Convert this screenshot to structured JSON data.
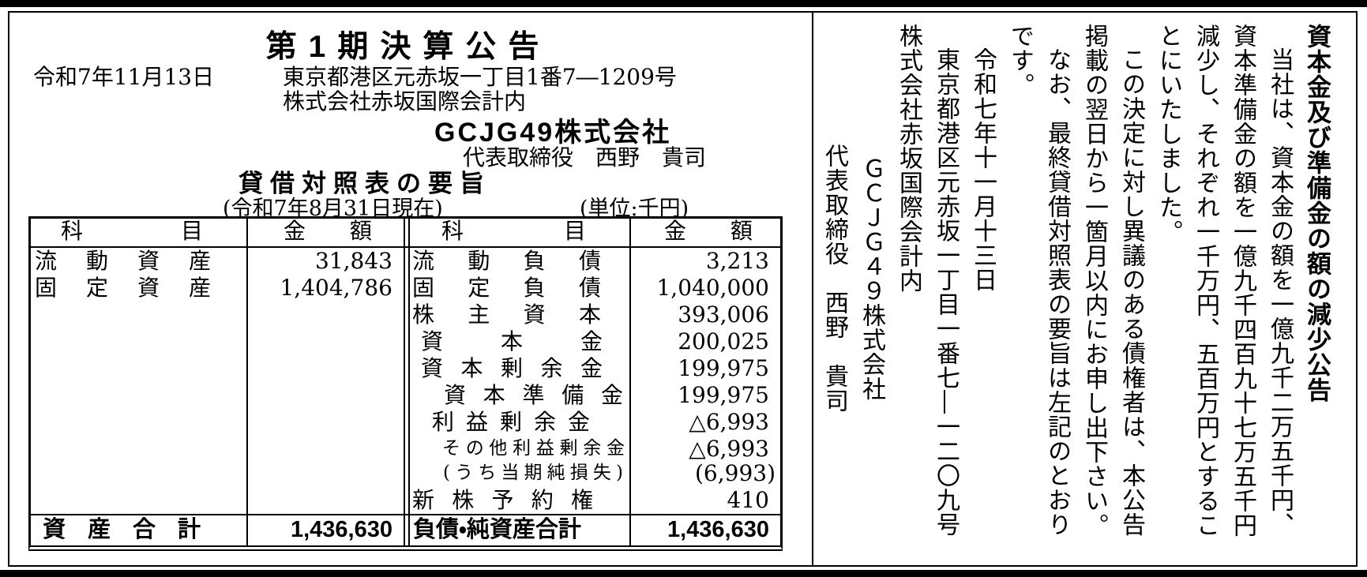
{
  "left": {
    "title": "第1期決算公告",
    "date": "令和7年11月13日",
    "address1": "東京都港区元赤坂一丁目1番7―1209号",
    "address2": "株式会社赤坂国際会計内",
    "company": "GCJG49株式会社",
    "representative": "代表取締役　西野　貴司",
    "bs_title": "貸借対照表の要旨",
    "bs_asof": "(令和7年8月31日現在)",
    "bs_unit": "(単位:千円)",
    "table": {
      "col_headers": [
        "科目",
        "金額",
        "科目",
        "金額"
      ],
      "assets": [
        {
          "label": "流動資産",
          "value": "31,843"
        },
        {
          "label": "固定資産",
          "value": "1,404,786"
        }
      ],
      "liabilities": [
        {
          "label": "流動負債",
          "value": "3,213"
        },
        {
          "label": "固定負債",
          "value": "1,040,000"
        },
        {
          "label": "株主資本",
          "value": "393,006"
        },
        {
          "label": "資本金",
          "value": "200,025"
        },
        {
          "label": "資本剰余金",
          "value": "199,975"
        },
        {
          "label": "資本準備金",
          "value": "199,975"
        },
        {
          "label": "利益剰余金",
          "value": "△6,993"
        },
        {
          "label": "その他利益剰余金",
          "value": "△6,993"
        },
        {
          "label": "(うち当期純損失)",
          "value": "(6,993)"
        },
        {
          "label": "新株予約権",
          "value": "410"
        }
      ],
      "total_assets": {
        "label": "資産合計",
        "value": "1,436,630"
      },
      "total_liabilities": {
        "label": "負債・純資産合計",
        "value": "1,436,630"
      }
    }
  },
  "right": {
    "heading": "資本金及び準備金の額の減少公告",
    "paragraphs": [
      "当社は、資本金の額を一億九千二万五千円、資本準備金の額を一億九千四百九十七万五千円減少し、それぞれ一千万円、五百万円とすることにいたしました。",
      "この決定に対し異議のある債権者は、本公告掲載の翌日から一箇月以内にお申し出下さい。",
      "なお、最終貸借対照表の要旨は左記のとおりです。"
    ],
    "date": "令和七年十一月十三日",
    "address": "東京都港区元赤坂一丁目一番七―一二〇九号株式会社赤坂国際会計内",
    "company": "ＧＣＪＧ４９株式会社",
    "representative": "代表取締役　西野　貴司"
  }
}
